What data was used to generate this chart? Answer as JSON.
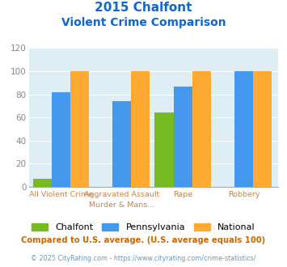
{
  "title_line1": "2015 Chalfont",
  "title_line2": "Violent Crime Comparison",
  "cat_labels_top": [
    "",
    "Aggravated Assault",
    "",
    ""
  ],
  "cat_labels_bot": [
    "All Violent Crime",
    "Murder & Mans...",
    "Rape",
    "Robbery"
  ],
  "series": {
    "Chalfont": [
      7,
      0,
      64,
      0
    ],
    "Pennsylvania": [
      82,
      74,
      87,
      100
    ],
    "National": [
      100,
      100,
      100,
      100
    ]
  },
  "colors": {
    "Chalfont": "#77bb22",
    "Pennsylvania": "#4499ee",
    "National": "#ffaa33"
  },
  "ylim": [
    0,
    120
  ],
  "yticks": [
    0,
    20,
    40,
    60,
    80,
    100,
    120
  ],
  "background_color": "#deeef4",
  "title_color": "#1166cc",
  "xlabel_color": "#bb8855",
  "footer_text": "Compared to U.S. average. (U.S. average equals 100)",
  "copyright_text": "© 2025 CityRating.com - https://www.cityrating.com/crime-statistics/",
  "footer_color": "#cc6600",
  "copyright_color": "#6699bb"
}
